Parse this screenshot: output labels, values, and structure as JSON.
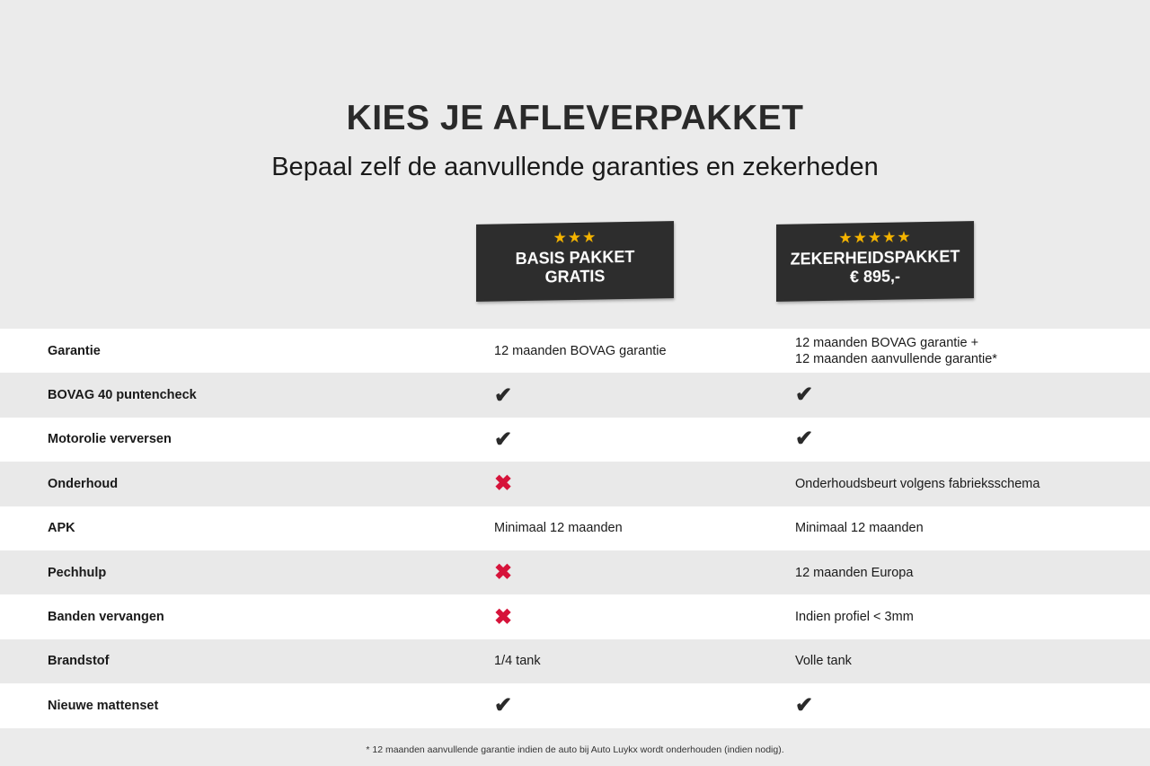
{
  "header": {
    "title": "KIES JE AFLEVERPAKKET",
    "subtitle": "Bepaal zelf de aanvullende garanties en zekerheden"
  },
  "packages": [
    {
      "stars": "★★★",
      "rating": 3,
      "name": "BASIS PAKKET",
      "price": "GRATIS"
    },
    {
      "stars": "★★★★★",
      "rating": 5,
      "name": "ZEKERHEIDSPAKKET",
      "price": "€ 895,-"
    }
  ],
  "colors": {
    "check": "#2a2a2a",
    "cross": "#d6133a",
    "star": "#f5b400",
    "badge": "#2d2d2d"
  },
  "rows": [
    {
      "label": "Garantie",
      "basis": {
        "type": "text",
        "value": "12 maanden BOVAG garantie"
      },
      "zekerheid": {
        "type": "text",
        "value": "12 maanden BOVAG garantie +",
        "value2": "12 maanden aanvullende garantie*"
      }
    },
    {
      "label": "BOVAG 40 puntencheck",
      "basis": {
        "type": "check",
        "value": "✔"
      },
      "zekerheid": {
        "type": "check",
        "value": "✔"
      }
    },
    {
      "label": "Motorolie verversen",
      "basis": {
        "type": "check",
        "value": "✔"
      },
      "zekerheid": {
        "type": "check",
        "value": "✔"
      }
    },
    {
      "label": "Onderhoud",
      "basis": {
        "type": "cross",
        "value": "✖"
      },
      "zekerheid": {
        "type": "text",
        "value": "Onderhoudsbeurt volgens fabrieksschema"
      }
    },
    {
      "label": "APK",
      "basis": {
        "type": "text",
        "value": "Minimaal 12 maanden"
      },
      "zekerheid": {
        "type": "text",
        "value": "Minimaal 12 maanden"
      }
    },
    {
      "label": "Pechhulp",
      "basis": {
        "type": "cross",
        "value": "✖"
      },
      "zekerheid": {
        "type": "text",
        "value": "12 maanden Europa"
      }
    },
    {
      "label": "Banden vervangen",
      "basis": {
        "type": "cross",
        "value": "✖"
      },
      "zekerheid": {
        "type": "text",
        "value": "Indien profiel < 3mm"
      }
    },
    {
      "label": "Brandstof",
      "basis": {
        "type": "text",
        "value": "1/4 tank"
      },
      "zekerheid": {
        "type": "text",
        "value": "Volle tank"
      }
    },
    {
      "label": "Nieuwe mattenset",
      "basis": {
        "type": "check",
        "value": "✔"
      },
      "zekerheid": {
        "type": "check",
        "value": "✔"
      }
    }
  ],
  "footnote": "* 12 maanden aanvullende garantie indien de auto bij Auto Luykx wordt onderhouden (indien nodig)."
}
